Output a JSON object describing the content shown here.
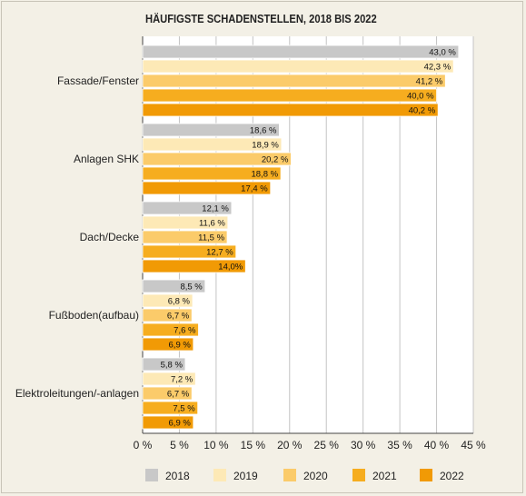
{
  "chart_data": {
    "type": "bar",
    "orientation": "horizontal",
    "title": "HÄUFIGSTE SCHADENSTELLEN, 2018 BIS 2022",
    "categories": [
      "Fassade/Fenster",
      "Anlagen SHK",
      "Dach/Decke",
      "Fußboden(aufbau)",
      "Elektroleitungen/-anlagen"
    ],
    "series": [
      {
        "name": "2018",
        "color": "#c8c8c8",
        "values": [
          43.0,
          18.6,
          12.1,
          8.5,
          5.8
        ],
        "labels": [
          "43,0 %",
          "18,6 %",
          "12,1 %",
          "8,5 %",
          "5,8 %"
        ]
      },
      {
        "name": "2019",
        "color": "#fde9b6",
        "values": [
          42.3,
          18.9,
          11.6,
          6.8,
          7.2
        ],
        "labels": [
          "42,3 %",
          "18,9 %",
          "11,6 %",
          "6,8 %",
          "7,2 %"
        ]
      },
      {
        "name": "2020",
        "color": "#fbcb6a",
        "values": [
          41.2,
          20.2,
          11.5,
          6.7,
          6.7
        ],
        "labels": [
          "41,2 %",
          "20,2 %",
          "11,5 %",
          "6,7 %",
          "6,7 %"
        ]
      },
      {
        "name": "2021",
        "color": "#f6ad1f",
        "values": [
          40.0,
          18.8,
          12.7,
          7.6,
          7.5
        ],
        "labels": [
          "40,0 %",
          "18,8 %",
          "12,7 %",
          "7,6 %",
          "7,5 %"
        ]
      },
      {
        "name": "2022",
        "color": "#f19a05",
        "values": [
          40.2,
          17.4,
          14.0,
          6.9,
          6.9
        ],
        "labels": [
          "40,2 %",
          "17,4 %",
          "14,0%",
          "6,9 %",
          "6,9 %"
        ]
      }
    ],
    "xlim": [
      0,
      45
    ],
    "xticks": [
      {
        "value": 0,
        "label": "0 %"
      },
      {
        "value": 5,
        "label": "5 %"
      },
      {
        "value": 10,
        "label": "10 %"
      },
      {
        "value": 15,
        "label": "15 %"
      },
      {
        "value": 20,
        "label": "20 %"
      },
      {
        "value": 25,
        "label": "25 %"
      },
      {
        "value": 30,
        "label": "30 %"
      },
      {
        "value": 35,
        "label": "35 %"
      },
      {
        "value": 40,
        "label": "40 %"
      },
      {
        "value": 45,
        "label": "45 %"
      }
    ],
    "grid": "vertical",
    "legend_position": "bottom"
  }
}
